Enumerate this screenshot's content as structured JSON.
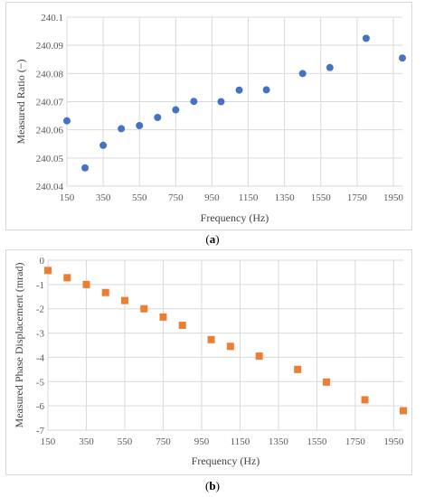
{
  "chart_data": [
    {
      "type": "scatter",
      "title": "",
      "xlabel": "Frequency (Hz)",
      "ylabel": "Measured Ratio (−)",
      "xlim": [
        150,
        2000
      ],
      "ylim": [
        240.04,
        240.1
      ],
      "xticks": [
        150,
        350,
        550,
        750,
        950,
        1150,
        1350,
        1550,
        1750,
        1950
      ],
      "yticks": [
        240.04,
        240.05,
        240.06,
        240.07,
        240.08,
        240.09,
        240.1
      ],
      "ytick_labels": [
        "240.04",
        "240.05",
        "240.06",
        "240.07",
        "240.08",
        "240.09",
        "240.1"
      ],
      "marker": "circle",
      "color": "#4472c4",
      "grid": true,
      "x": [
        150,
        250,
        350,
        450,
        550,
        650,
        750,
        850,
        1000,
        1100,
        1250,
        1450,
        1600,
        1800,
        2000
      ],
      "y": [
        240.0632,
        240.0465,
        240.0545,
        240.0604,
        240.0615,
        240.0644,
        240.0671,
        240.0701,
        240.07,
        240.0741,
        240.0742,
        240.08,
        240.0821,
        240.0925,
        240.0855
      ],
      "caption_label": "a"
    },
    {
      "type": "scatter",
      "title": "",
      "xlabel": "Frequency (Hz)",
      "ylabel": "Measured Phase Displacement (mrad)",
      "xlim": [
        150,
        2000
      ],
      "ylim": [
        -7,
        0
      ],
      "xticks": [
        150,
        350,
        550,
        750,
        950,
        1150,
        1350,
        1550,
        1750,
        1950
      ],
      "yticks": [
        0,
        -1,
        -2,
        -3,
        -4,
        -5,
        -6,
        -7
      ],
      "ytick_labels": [
        "0",
        "-1",
        "-2",
        "-3",
        "-4",
        "-5",
        "-6",
        "-7"
      ],
      "marker": "square",
      "color": "#ed7d31",
      "grid": true,
      "x": [
        150,
        250,
        350,
        450,
        550,
        650,
        750,
        850,
        1000,
        1100,
        1250,
        1450,
        1600,
        1800,
        2000
      ],
      "y": [
        -0.42,
        -0.72,
        -1.0,
        -1.33,
        -1.66,
        -2.0,
        -2.34,
        -2.68,
        -3.27,
        -3.55,
        -3.95,
        -4.5,
        -5.02,
        -5.75,
        -6.2
      ],
      "caption_label": "b"
    }
  ]
}
